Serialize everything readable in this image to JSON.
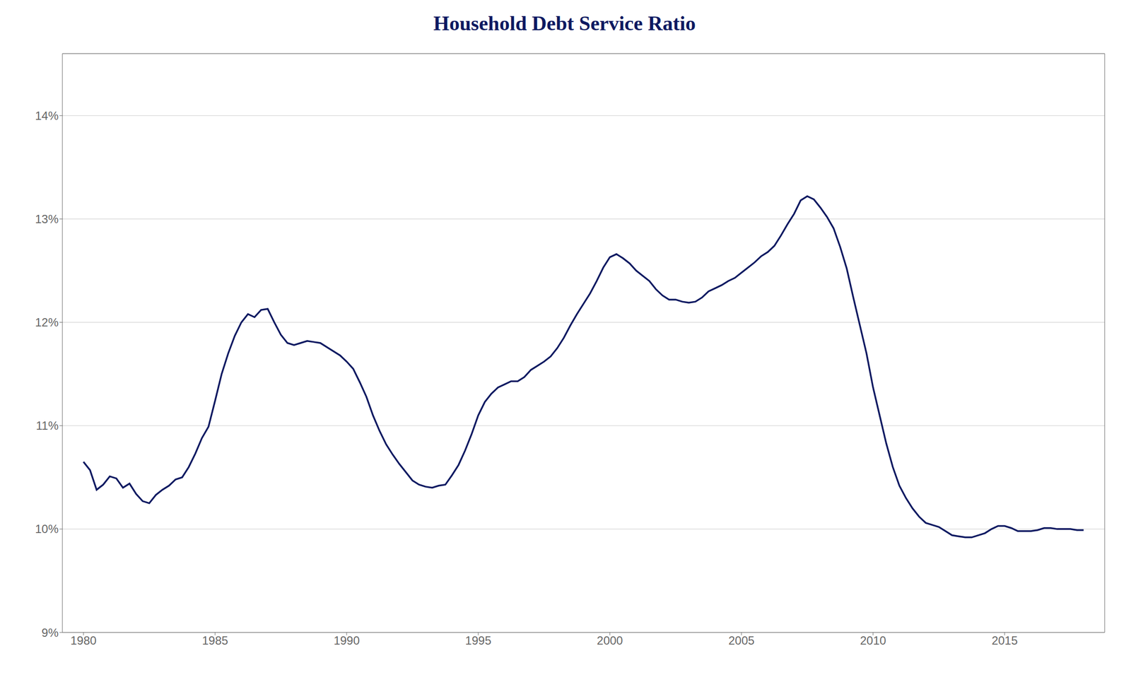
{
  "chart_data": {
    "type": "line",
    "title": "Household Debt Service Ratio",
    "color": "#0d1961",
    "grid": true,
    "xlim": [
      1979.2,
      2018.8
    ],
    "xticks": [
      1980,
      1985,
      1990,
      1995,
      2000,
      2005,
      2010,
      2015
    ],
    "ylim": [
      9.0,
      14.6
    ],
    "yticks": [
      {
        "value": 9,
        "label": "9%"
      },
      {
        "value": 10,
        "label": "10%"
      },
      {
        "value": 11,
        "label": "11%"
      },
      {
        "value": 12,
        "label": "12%"
      },
      {
        "value": 13,
        "label": "13%"
      },
      {
        "value": 14,
        "label": "14%"
      }
    ],
    "x": [
      1980.0,
      1980.25,
      1980.5,
      1980.75,
      1981.0,
      1981.25,
      1981.5,
      1981.75,
      1982.0,
      1982.25,
      1982.5,
      1982.75,
      1983.0,
      1983.25,
      1983.5,
      1983.75,
      1984.0,
      1984.25,
      1984.5,
      1984.75,
      1985.0,
      1985.25,
      1985.5,
      1985.75,
      1986.0,
      1986.25,
      1986.5,
      1986.75,
      1987.0,
      1987.25,
      1987.5,
      1987.75,
      1988.0,
      1988.25,
      1988.5,
      1988.75,
      1989.0,
      1989.25,
      1989.5,
      1989.75,
      1990.0,
      1990.25,
      1990.5,
      1990.75,
      1991.0,
      1991.25,
      1991.5,
      1991.75,
      1992.0,
      1992.25,
      1992.5,
      1992.75,
      1993.0,
      1993.25,
      1993.5,
      1993.75,
      1994.0,
      1994.25,
      1994.5,
      1994.75,
      1995.0,
      1995.25,
      1995.5,
      1995.75,
      1996.0,
      1996.25,
      1996.5,
      1996.75,
      1997.0,
      1997.25,
      1997.5,
      1997.75,
      1998.0,
      1998.25,
      1998.5,
      1998.75,
      1999.0,
      1999.25,
      1999.5,
      1999.75,
      2000.0,
      2000.25,
      2000.5,
      2000.75,
      2001.0,
      2001.25,
      2001.5,
      2001.75,
      2002.0,
      2002.25,
      2002.5,
      2002.75,
      2003.0,
      2003.25,
      2003.5,
      2003.75,
      2004.0,
      2004.25,
      2004.5,
      2004.75,
      2005.0,
      2005.25,
      2005.5,
      2005.75,
      2006.0,
      2006.25,
      2006.5,
      2006.75,
      2007.0,
      2007.25,
      2007.5,
      2007.75,
      2008.0,
      2008.25,
      2008.5,
      2008.75,
      2009.0,
      2009.25,
      2009.5,
      2009.75,
      2010.0,
      2010.25,
      2010.5,
      2010.75,
      2011.0,
      2011.25,
      2011.5,
      2011.75,
      2012.0,
      2012.25,
      2012.5,
      2012.75,
      2013.0,
      2013.25,
      2013.5,
      2013.75,
      2014.0,
      2014.25,
      2014.5,
      2014.75,
      2015.0,
      2015.25,
      2015.5,
      2015.75,
      2016.0,
      2016.25,
      2016.5,
      2016.75,
      2017.0,
      2017.25,
      2017.5,
      2017.75,
      2018.0
    ],
    "values": [
      10.65,
      10.57,
      10.38,
      10.43,
      10.51,
      10.49,
      10.4,
      10.44,
      10.34,
      10.27,
      10.25,
      10.33,
      10.38,
      10.42,
      10.48,
      10.5,
      10.6,
      10.73,
      10.88,
      10.99,
      11.24,
      11.5,
      11.7,
      11.87,
      12.0,
      12.08,
      12.05,
      12.12,
      12.13,
      12.0,
      11.88,
      11.8,
      11.78,
      11.8,
      11.82,
      11.81,
      11.8,
      11.76,
      11.72,
      11.68,
      11.62,
      11.55,
      11.42,
      11.28,
      11.1,
      10.95,
      10.82,
      10.72,
      10.63,
      10.55,
      10.47,
      10.43,
      10.41,
      10.4,
      10.42,
      10.43,
      10.52,
      10.62,
      10.76,
      10.92,
      11.1,
      11.23,
      11.31,
      11.37,
      11.4,
      11.43,
      11.43,
      11.47,
      11.54,
      11.58,
      11.62,
      11.67,
      11.75,
      11.85,
      11.97,
      12.08,
      12.18,
      12.28,
      12.4,
      12.53,
      12.63,
      12.66,
      12.62,
      12.57,
      12.5,
      12.45,
      12.4,
      12.32,
      12.26,
      12.22,
      12.22,
      12.2,
      12.19,
      12.2,
      12.24,
      12.3,
      12.33,
      12.36,
      12.4,
      12.43,
      12.48,
      12.53,
      12.58,
      12.64,
      12.68,
      12.74,
      12.84,
      12.95,
      13.05,
      13.18,
      13.22,
      13.19,
      13.11,
      13.02,
      12.91,
      12.73,
      12.52,
      12.24,
      11.97,
      11.7,
      11.37,
      11.1,
      10.83,
      10.6,
      10.42,
      10.3,
      10.2,
      10.12,
      10.06,
      10.04,
      10.02,
      9.98,
      9.94,
      9.93,
      9.92,
      9.92,
      9.94,
      9.96,
      10.0,
      10.03,
      10.03,
      10.01,
      9.98,
      9.98,
      9.98,
      9.99,
      10.01,
      10.01,
      10.0,
      10.0,
      10.0,
      9.99,
      9.99
    ]
  }
}
